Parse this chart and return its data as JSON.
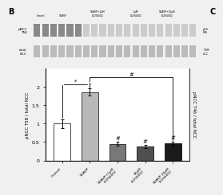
{
  "bars": {
    "labels": [
      "Control",
      "5DAVP",
      "5DAVP+1μM\nLY294002",
      "10μM\nLY294002",
      "5DAVP+10μM\nLY294002"
    ],
    "values": [
      1.0,
      1.85,
      0.45,
      0.38,
      0.47
    ],
    "errors": [
      0.12,
      0.1,
      0.05,
      0.04,
      0.05
    ],
    "colors": [
      "white",
      "#b8b8b8",
      "#787878",
      "#505050",
      "#1a1a1a"
    ]
  },
  "ylabel_left": "pNCC T58 / total NCC",
  "ylabel_right": "pNCC T46 / total NCC",
  "ylim": [
    0.0,
    2.5
  ],
  "yticks": [
    0.0,
    0.5,
    1.0,
    1.5,
    2.0
  ],
  "background": "#f0f0f0",
  "blot_bg": "#e0e0e0",
  "band_row1_dark": "#888888",
  "band_row1_light": "#cccccc",
  "band_row2": "#bbbbbb",
  "n_lanes_dark": 6,
  "n_lanes_total": 20
}
